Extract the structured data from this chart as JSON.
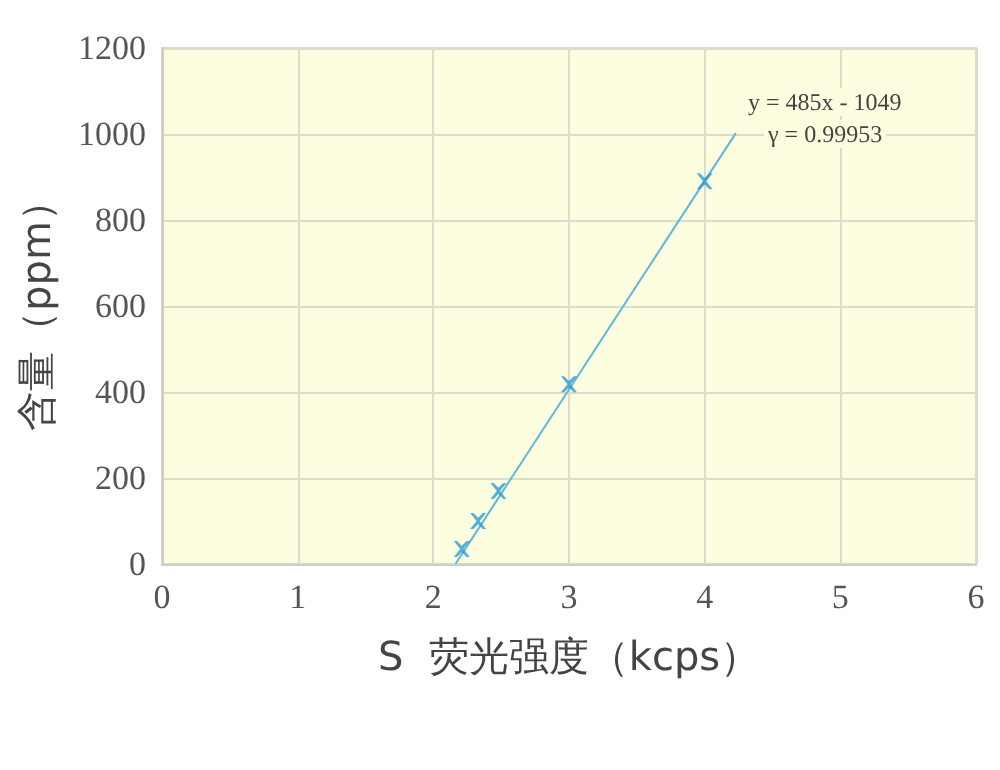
{
  "chart_data": {
    "type": "scatter",
    "xlabel": "S  荧光强度（kcps）",
    "ylabel": "含量（ppm）",
    "xlim": [
      0,
      6
    ],
    "xticks": [
      0,
      1,
      2,
      3,
      4,
      5,
      6
    ],
    "ylim": [
      0,
      1200
    ],
    "yticks": [
      0,
      200,
      400,
      600,
      800,
      1000,
      1200
    ],
    "grid": true,
    "marker": "cross",
    "annotations": [
      "y = 485x - 1049",
      "γ = 0.99953"
    ],
    "series": [
      {
        "color": "#2b9bd6",
        "x": [
          2.21,
          2.33,
          2.48,
          3.0,
          4.0
        ],
        "values": [
          35,
          100,
          170,
          418,
          890
        ]
      },
      {
        "type": "line",
        "marker": "none",
        "color": "#5bb8d8",
        "x": [
          2.163,
          4.23
        ],
        "values": [
          0,
          1002
        ]
      }
    ]
  }
}
